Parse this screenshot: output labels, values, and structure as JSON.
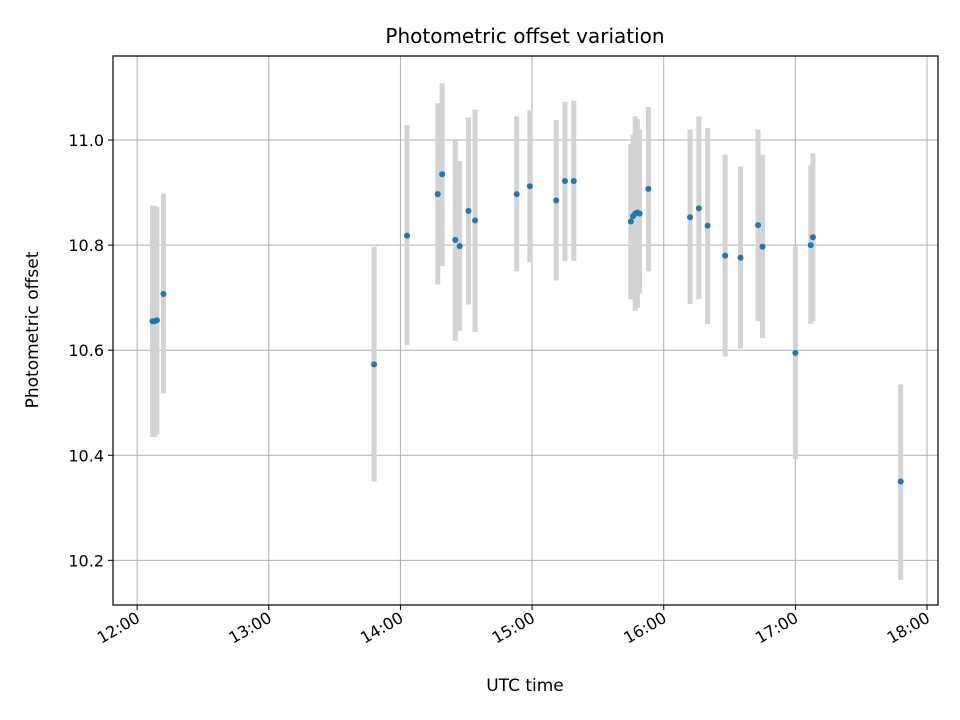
{
  "chart_data": {
    "type": "scatter",
    "title": "Photometric offset variation",
    "xlabel": "UTC time",
    "ylabel": "Photometric offset",
    "xlim": [
      "11:49",
      "18:05"
    ],
    "ylim": [
      10.115,
      11.16
    ],
    "x_ticks": [
      "12:00",
      "13:00",
      "14:00",
      "15:00",
      "16:00",
      "17:00",
      "18:00"
    ],
    "y_ticks": [
      10.2,
      10.4,
      10.6,
      10.8,
      11.0
    ],
    "y_tick_labels": [
      "10.2",
      "10.4",
      "10.6",
      "10.8",
      "11.0"
    ],
    "grid": true,
    "marker_color": "#1f77b4",
    "errorbar_color": "#d3d3d3",
    "points": [
      {
        "t": "12:07",
        "y": 10.655,
        "lo": 10.435,
        "hi": 10.875
      },
      {
        "t": "12:08",
        "y": 10.655,
        "lo": 10.435,
        "hi": 10.875
      },
      {
        "t": "12:09",
        "y": 10.657,
        "lo": 10.44,
        "hi": 10.872
      },
      {
        "t": "12:12",
        "y": 10.707,
        "lo": 10.518,
        "hi": 10.898
      },
      {
        "t": "13:48",
        "y": 10.573,
        "lo": 10.35,
        "hi": 10.797
      },
      {
        "t": "14:03",
        "y": 10.818,
        "lo": 10.61,
        "hi": 11.028
      },
      {
        "t": "14:17",
        "y": 10.897,
        "lo": 10.725,
        "hi": 11.07
      },
      {
        "t": "14:19",
        "y": 10.935,
        "lo": 10.76,
        "hi": 11.108
      },
      {
        "t": "14:25",
        "y": 10.81,
        "lo": 10.618,
        "hi": 11.002
      },
      {
        "t": "14:27",
        "y": 10.798,
        "lo": 10.637,
        "hi": 10.96
      },
      {
        "t": "14:31",
        "y": 10.865,
        "lo": 10.687,
        "hi": 11.043
      },
      {
        "t": "14:34",
        "y": 10.847,
        "lo": 10.635,
        "hi": 11.058
      },
      {
        "t": "14:53",
        "y": 10.897,
        "lo": 10.75,
        "hi": 11.045
      },
      {
        "t": "14:59",
        "y": 10.912,
        "lo": 10.767,
        "hi": 11.057
      },
      {
        "t": "15:11",
        "y": 10.885,
        "lo": 10.733,
        "hi": 11.038
      },
      {
        "t": "15:15",
        "y": 10.922,
        "lo": 10.77,
        "hi": 11.073
      },
      {
        "t": "15:19",
        "y": 10.922,
        "lo": 10.77,
        "hi": 11.075
      },
      {
        "t": "15:45",
        "y": 10.845,
        "lo": 10.697,
        "hi": 10.993
      },
      {
        "t": "15:46",
        "y": 10.855,
        "lo": 10.7,
        "hi": 11.01
      },
      {
        "t": "15:47",
        "y": 10.86,
        "lo": 10.675,
        "hi": 11.045
      },
      {
        "t": "15:48",
        "y": 10.862,
        "lo": 10.68,
        "hi": 11.04
      },
      {
        "t": "15:49",
        "y": 10.86,
        "lo": 10.708,
        "hi": 11.02
      },
      {
        "t": "15:53",
        "y": 10.907,
        "lo": 10.75,
        "hi": 11.063
      },
      {
        "t": "16:12",
        "y": 10.853,
        "lo": 10.688,
        "hi": 11.02
      },
      {
        "t": "16:16",
        "y": 10.87,
        "lo": 10.697,
        "hi": 11.045
      },
      {
        "t": "16:20",
        "y": 10.837,
        "lo": 10.65,
        "hi": 11.023
      },
      {
        "t": "16:28",
        "y": 10.78,
        "lo": 10.588,
        "hi": 10.972
      },
      {
        "t": "16:35",
        "y": 10.776,
        "lo": 10.603,
        "hi": 10.95
      },
      {
        "t": "16:43",
        "y": 10.838,
        "lo": 10.655,
        "hi": 11.02
      },
      {
        "t": "16:45",
        "y": 10.797,
        "lo": 10.623,
        "hi": 10.972
      },
      {
        "t": "17:00",
        "y": 10.595,
        "lo": 10.393,
        "hi": 10.797
      },
      {
        "t": "17:07",
        "y": 10.8,
        "lo": 10.65,
        "hi": 10.952
      },
      {
        "t": "17:08",
        "y": 10.815,
        "lo": 10.655,
        "hi": 10.975
      },
      {
        "t": "17:48",
        "y": 10.35,
        "lo": 10.163,
        "hi": 10.535
      }
    ]
  }
}
